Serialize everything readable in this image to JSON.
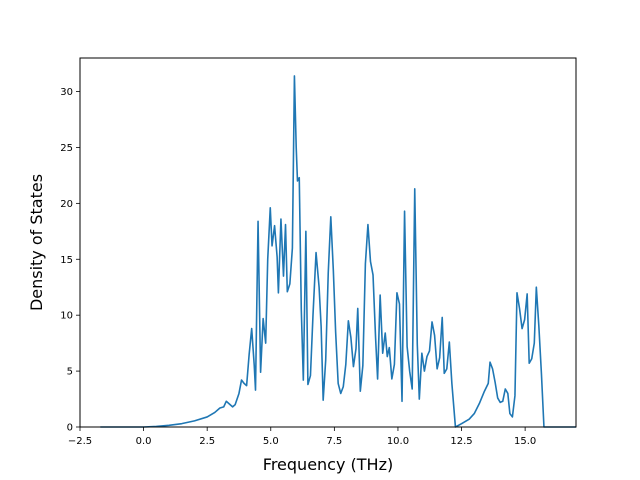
{
  "chart_data": {
    "type": "line",
    "title": "",
    "xlabel": "Frequency (THz)",
    "ylabel": "Density of States",
    "xlim": [
      -2.5,
      17.0
    ],
    "ylim": [
      0,
      33
    ],
    "grid": false,
    "legend": "none",
    "x_ticks": [
      -2.5,
      0.0,
      2.5,
      5.0,
      7.5,
      10.0,
      12.5,
      15.0
    ],
    "x_tick_labels": [
      "−2.5",
      "0.0",
      "2.5",
      "5.0",
      "7.5",
      "10.0",
      "12.5",
      "15.0"
    ],
    "y_ticks": [
      0,
      5,
      10,
      15,
      20,
      25,
      30
    ],
    "y_tick_labels": [
      "0",
      "5",
      "10",
      "15",
      "20",
      "25",
      "30"
    ],
    "series": [
      {
        "color": "#1f77b4",
        "points": [
          [
            -1.7,
            0
          ],
          [
            -1.0,
            0
          ],
          [
            0.0,
            0
          ],
          [
            0.5,
            0.05
          ],
          [
            1.0,
            0.15
          ],
          [
            1.5,
            0.3
          ],
          [
            2.0,
            0.55
          ],
          [
            2.5,
            0.9
          ],
          [
            2.8,
            1.3
          ],
          [
            3.0,
            1.7
          ],
          [
            3.15,
            1.8
          ],
          [
            3.25,
            2.3
          ],
          [
            3.35,
            2.1
          ],
          [
            3.5,
            1.8
          ],
          [
            3.6,
            2.0
          ],
          [
            3.75,
            3.0
          ],
          [
            3.85,
            4.2
          ],
          [
            3.95,
            3.9
          ],
          [
            4.05,
            3.7
          ],
          [
            4.15,
            6.5
          ],
          [
            4.25,
            8.8
          ],
          [
            4.35,
            5.5
          ],
          [
            4.4,
            3.3
          ],
          [
            4.5,
            18.4
          ],
          [
            4.6,
            4.9
          ],
          [
            4.7,
            9.7
          ],
          [
            4.8,
            7.5
          ],
          [
            4.88,
            15.0
          ],
          [
            4.98,
            19.6
          ],
          [
            5.05,
            16.2
          ],
          [
            5.15,
            18.0
          ],
          [
            5.25,
            15.2
          ],
          [
            5.3,
            12.0
          ],
          [
            5.4,
            18.6
          ],
          [
            5.5,
            13.5
          ],
          [
            5.58,
            18.1
          ],
          [
            5.65,
            12.1
          ],
          [
            5.75,
            12.8
          ],
          [
            5.85,
            16.0
          ],
          [
            5.93,
            31.4
          ],
          [
            6.0,
            25.0
          ],
          [
            6.05,
            22.0
          ],
          [
            6.12,
            22.3
          ],
          [
            6.2,
            10.5
          ],
          [
            6.28,
            4.2
          ],
          [
            6.38,
            17.5
          ],
          [
            6.46,
            3.8
          ],
          [
            6.56,
            4.6
          ],
          [
            6.66,
            10.0
          ],
          [
            6.78,
            15.6
          ],
          [
            6.9,
            12.5
          ],
          [
            6.98,
            9.0
          ],
          [
            7.06,
            2.4
          ],
          [
            7.16,
            6.0
          ],
          [
            7.26,
            13.8
          ],
          [
            7.36,
            18.8
          ],
          [
            7.46,
            14.0
          ],
          [
            7.55,
            8.5
          ],
          [
            7.65,
            3.9
          ],
          [
            7.75,
            3.0
          ],
          [
            7.85,
            3.6
          ],
          [
            7.95,
            5.6
          ],
          [
            8.05,
            9.5
          ],
          [
            8.15,
            8.0
          ],
          [
            8.25,
            5.4
          ],
          [
            8.35,
            7.0
          ],
          [
            8.42,
            10.6
          ],
          [
            8.52,
            3.2
          ],
          [
            8.62,
            5.5
          ],
          [
            8.72,
            14.6
          ],
          [
            8.82,
            18.1
          ],
          [
            8.92,
            14.8
          ],
          [
            9.02,
            13.6
          ],
          [
            9.12,
            8.0
          ],
          [
            9.2,
            4.3
          ],
          [
            9.3,
            11.8
          ],
          [
            9.4,
            6.6
          ],
          [
            9.5,
            8.4
          ],
          [
            9.58,
            6.3
          ],
          [
            9.66,
            7.1
          ],
          [
            9.76,
            4.3
          ],
          [
            9.86,
            5.6
          ],
          [
            9.96,
            12.0
          ],
          [
            10.06,
            11.0
          ],
          [
            10.16,
            2.3
          ],
          [
            10.26,
            19.3
          ],
          [
            10.36,
            7.2
          ],
          [
            10.46,
            5.0
          ],
          [
            10.56,
            3.4
          ],
          [
            10.66,
            21.3
          ],
          [
            10.76,
            7.4
          ],
          [
            10.84,
            2.5
          ],
          [
            10.94,
            6.6
          ],
          [
            11.04,
            5.0
          ],
          [
            11.14,
            6.3
          ],
          [
            11.24,
            6.8
          ],
          [
            11.34,
            9.4
          ],
          [
            11.44,
            8.2
          ],
          [
            11.54,
            5.2
          ],
          [
            11.64,
            6.2
          ],
          [
            11.74,
            9.8
          ],
          [
            11.82,
            4.8
          ],
          [
            11.92,
            5.2
          ],
          [
            12.02,
            7.6
          ],
          [
            12.12,
            3.9
          ],
          [
            12.26,
            0.0
          ],
          [
            12.5,
            0.3
          ],
          [
            12.8,
            0.7
          ],
          [
            13.0,
            1.2
          ],
          [
            13.2,
            2.1
          ],
          [
            13.4,
            3.2
          ],
          [
            13.55,
            3.9
          ],
          [
            13.62,
            5.8
          ],
          [
            13.72,
            5.2
          ],
          [
            13.82,
            4.0
          ],
          [
            13.92,
            2.6
          ],
          [
            14.02,
            2.2
          ],
          [
            14.12,
            2.3
          ],
          [
            14.22,
            3.4
          ],
          [
            14.32,
            3.0
          ],
          [
            14.4,
            1.2
          ],
          [
            14.5,
            0.9
          ],
          [
            14.6,
            2.8
          ],
          [
            14.68,
            12.0
          ],
          [
            14.78,
            10.6
          ],
          [
            14.88,
            8.8
          ],
          [
            14.98,
            9.6
          ],
          [
            15.08,
            11.9
          ],
          [
            15.16,
            5.7
          ],
          [
            15.26,
            6.1
          ],
          [
            15.36,
            7.5
          ],
          [
            15.44,
            12.5
          ],
          [
            15.54,
            9.0
          ],
          [
            15.64,
            4.8
          ],
          [
            15.74,
            0.0
          ],
          [
            16.2,
            0.0
          ],
          [
            17.0,
            0.0
          ]
        ]
      }
    ]
  }
}
